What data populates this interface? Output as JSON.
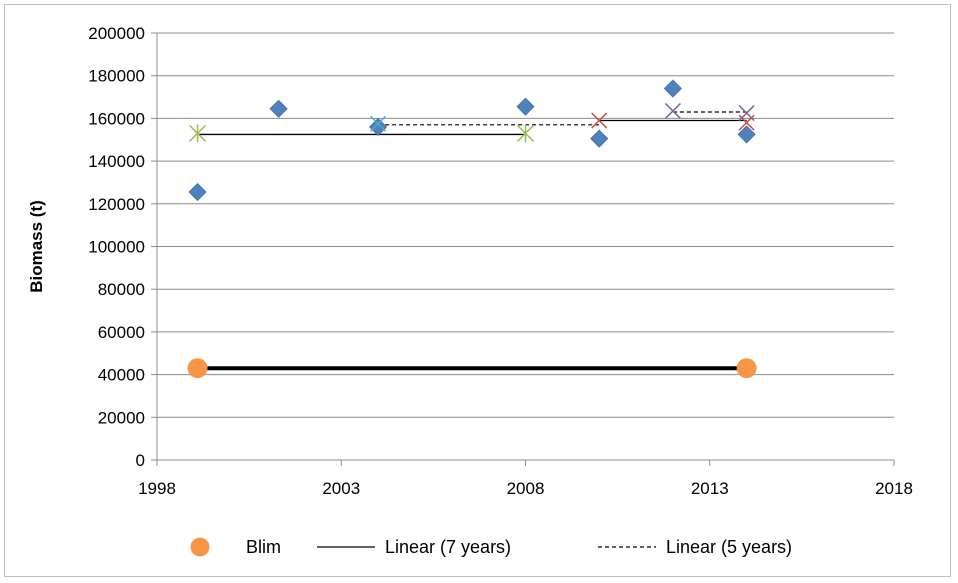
{
  "chart_data": {
    "type": "scatter",
    "title": "",
    "xlabel": "",
    "ylabel": "Biomass (t)",
    "xlim": [
      1998,
      2018
    ],
    "ylim": [
      0,
      200000
    ],
    "x_ticks": [
      "1998",
      "2003",
      "2008",
      "2013",
      "2018"
    ],
    "y_ticks": [
      "0",
      "20000",
      "40000",
      "60000",
      "80000",
      "100000",
      "120000",
      "140000",
      "160000",
      "180000",
      "200000"
    ],
    "grid": true,
    "legend_position": "bottom",
    "series": [
      {
        "marker": "diamond",
        "color": "#4f81bd",
        "points": [
          [
            1999.1,
            125500
          ],
          [
            2001.3,
            164500
          ],
          [
            2004.0,
            156000
          ],
          [
            2008.0,
            165500
          ],
          [
            2010.0,
            150500
          ],
          [
            2012.0,
            174000
          ],
          [
            2014.0,
            152500
          ]
        ]
      },
      {
        "marker": "asterisk",
        "color": "#9bbb59",
        "points": [
          [
            1999.1,
            153000
          ],
          [
            2008.0,
            153000
          ]
        ]
      },
      {
        "marker": "x",
        "color": "#4bacc6",
        "points": [
          [
            2004.0,
            157500
          ]
        ]
      },
      {
        "marker": "x",
        "color": "#c0504d",
        "points": [
          [
            2010.0,
            159000
          ],
          [
            2014.0,
            158000
          ]
        ]
      },
      {
        "marker": "x",
        "color": "#8064a2",
        "points": [
          [
            2012.0,
            163500
          ],
          [
            2014.0,
            162500
          ]
        ]
      },
      {
        "name": "Blim",
        "marker": "circle",
        "color": "#f79646",
        "points": [
          [
            1999.1,
            43000
          ],
          [
            2014.0,
            43000
          ]
        ]
      }
    ],
    "lines": [
      {
        "name": "Linear (7 years)",
        "style": "solid",
        "color": "#000000",
        "points": [
          [
            1999.1,
            152500
          ],
          [
            2008.0,
            152500
          ]
        ]
      },
      {
        "name": "Linear (7 years)",
        "style": "solid",
        "color": "#000000",
        "points": [
          [
            2010.0,
            159000
          ],
          [
            2014.0,
            159000
          ]
        ]
      },
      {
        "name": "Linear (5 years)",
        "style": "dashed",
        "color": "#000000",
        "points": [
          [
            2004.0,
            157000
          ],
          [
            2010.0,
            157000
          ]
        ]
      },
      {
        "name": "Linear (5 years)",
        "style": "dashed",
        "color": "#000000",
        "points": [
          [
            2012.0,
            163000
          ],
          [
            2014.0,
            163000
          ]
        ]
      },
      {
        "name": "Blim",
        "style": "thick",
        "color": "#000000",
        "points": [
          [
            1999.1,
            43000
          ],
          [
            2014.0,
            43000
          ]
        ]
      }
    ],
    "legend": [
      {
        "label": "Blim",
        "kind": "circle",
        "color": "#f79646"
      },
      {
        "label": "Linear (7 years)",
        "kind": "solid",
        "color": "#000000"
      },
      {
        "label": "Linear (5 years)",
        "kind": "dashed",
        "color": "#000000"
      }
    ]
  }
}
